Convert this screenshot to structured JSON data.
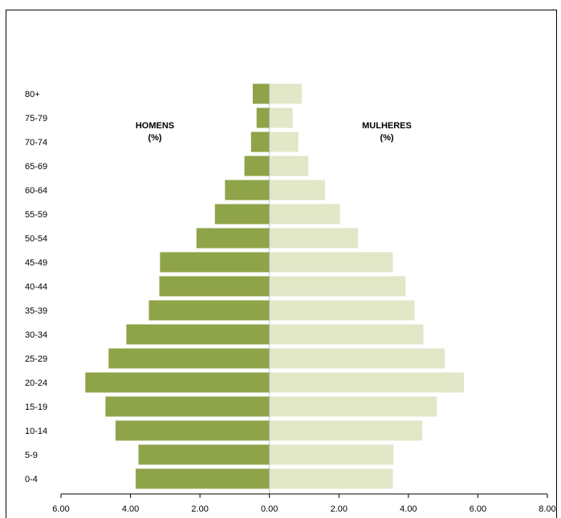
{
  "chart_data": {
    "type": "bar",
    "orientation": "horizontal",
    "subtype": "population-pyramid",
    "categories": [
      "80+",
      "75-79",
      "70-74",
      "65-69",
      "60-64",
      "55-59",
      "50-54",
      "45-49",
      "40-44",
      "35-39",
      "30-34",
      "25-29",
      "20-24",
      "15-19",
      "10-14",
      "5-9",
      "0-4"
    ],
    "series": [
      {
        "name": "HOMENS\n(%)",
        "name_lines": [
          "HOMENS",
          "(%)"
        ],
        "color": "#8fa349",
        "values": [
          0.48,
          0.37,
          0.53,
          0.72,
          1.28,
          1.57,
          2.1,
          3.15,
          3.17,
          3.47,
          4.12,
          4.63,
          5.3,
          4.72,
          4.43,
          3.77,
          3.85
        ]
      },
      {
        "name": "MULHERES\n(%)",
        "name_lines": [
          "MULHERES",
          "(%)"
        ],
        "color": "#e1e7c7",
        "values": [
          0.93,
          0.67,
          0.83,
          1.12,
          1.6,
          2.03,
          2.55,
          3.55,
          3.92,
          4.18,
          4.43,
          5.05,
          5.6,
          4.82,
          4.4,
          3.57,
          3.55
        ]
      }
    ],
    "xaxis": {
      "range": [
        -6,
        8
      ],
      "ticks": [
        -6,
        -4,
        -2,
        0,
        2,
        4,
        6,
        8
      ],
      "tick_labels": [
        "6.00",
        "4.00",
        "2.00",
        "0.00",
        "2.00",
        "4.00",
        "6.00",
        "8.00"
      ]
    },
    "title": "",
    "xlabel": "",
    "ylabel": "",
    "grid": false,
    "legend_position": "inside-top"
  }
}
